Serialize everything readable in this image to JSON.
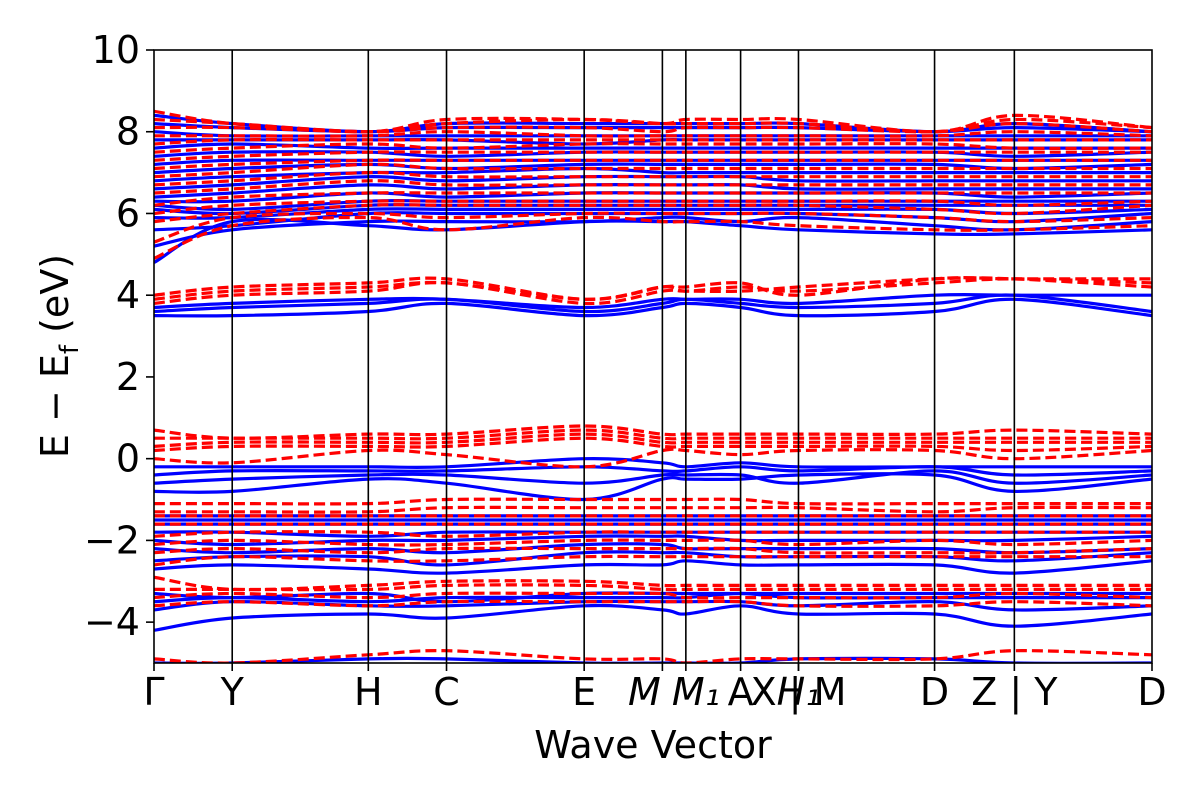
{
  "chart_data": {
    "type": "line",
    "title": "",
    "xlabel": "Wave Vector",
    "ylabel": "E − E_f (eV)",
    "ylabel_main": "E − E",
    "ylabel_sub": "f",
    "ylabel_unit": " (eV)",
    "ylim": [
      -5,
      10
    ],
    "yticks": [
      -4,
      -2,
      0,
      2,
      4,
      6,
      8,
      10
    ],
    "ytick_labels": [
      "−4",
      "−2",
      "0",
      "2",
      "4",
      "6",
      "8",
      "10"
    ],
    "kpoint_labels": [
      "Γ",
      "Y",
      "H",
      "C",
      "E",
      "M",
      "M₁",
      "A",
      "H₁",
      "X | M",
      "D",
      "Z | Y",
      "D"
    ],
    "kpoint_positions": [
      0,
      0.5,
      1.37,
      1.87,
      2.75,
      3.25,
      3.4,
      3.75,
      4.12,
      4.12,
      4.99,
      5.5,
      6.38
    ],
    "segment_breaks": [
      4.12,
      5.5
    ],
    "xlim": [
      0,
      6.38
    ],
    "colors": {
      "spin_up": "#0000ff",
      "spin_down": "#ff0000"
    },
    "series": [
      {
        "style": "solid",
        "color": "blue",
        "values": [
          [
            -5.0,
            -5.0,
            -4.9,
            -4.9,
            -5.0,
            -5.0,
            -5.0,
            -5.0,
            -4.9,
            -4.9,
            -5.0,
            -5.0
          ],
          [
            -4.2,
            -3.9,
            -3.8,
            -3.9,
            -3.6,
            -3.7,
            -3.8,
            -3.6,
            -3.8,
            -3.8,
            -4.1,
            -3.8
          ],
          [
            -3.7,
            -3.5,
            -3.6,
            -3.6,
            -3.5,
            -3.5,
            -3.5,
            -3.5,
            -3.6,
            -3.5,
            -3.7,
            -3.6
          ],
          [
            -3.5,
            -3.4,
            -3.5,
            -3.4,
            -3.4,
            -3.4,
            -3.4,
            -3.3,
            -3.4,
            -3.4,
            -3.4,
            -3.4
          ],
          [
            -3.3,
            -3.4,
            -3.3,
            -3.5,
            -3.3,
            -3.3,
            -3.3,
            -3.3,
            -3.3,
            -3.3,
            -3.3,
            -3.3
          ],
          [
            -2.7,
            -2.6,
            -2.7,
            -2.8,
            -2.6,
            -2.6,
            -2.5,
            -2.6,
            -2.6,
            -2.6,
            -2.8,
            -2.5
          ],
          [
            -2.5,
            -2.4,
            -2.4,
            -2.6,
            -2.3,
            -2.3,
            -2.3,
            -2.4,
            -2.4,
            -2.4,
            -2.5,
            -2.3
          ],
          [
            -2.2,
            -2.3,
            -2.2,
            -2.3,
            -2.1,
            -2.1,
            -2.2,
            -2.2,
            -2.2,
            -2.2,
            -2.3,
            -2.2
          ],
          [
            -2.0,
            -2.1,
            -2.0,
            -2.0,
            -1.9,
            -1.9,
            -1.9,
            -2.0,
            -2.0,
            -2.0,
            -2.0,
            -1.9
          ],
          [
            -1.8,
            -1.8,
            -1.9,
            -1.8,
            -1.8,
            -1.8,
            -1.8,
            -1.8,
            -1.8,
            -1.8,
            -1.8,
            -1.8
          ],
          [
            -1.6,
            -1.6,
            -1.6,
            -1.6,
            -1.6,
            -1.6,
            -1.6,
            -1.6,
            -1.6,
            -1.6,
            -1.6,
            -1.6
          ],
          [
            -1.5,
            -1.5,
            -1.5,
            -1.5,
            -1.5,
            -1.5,
            -1.5,
            -1.5,
            -1.5,
            -1.5,
            -1.5,
            -1.5
          ],
          [
            -1.4,
            -1.4,
            -1.4,
            -1.4,
            -1.4,
            -1.4,
            -1.4,
            -1.4,
            -1.4,
            -1.4,
            -1.4,
            -1.4
          ],
          [
            -0.8,
            -0.8,
            -0.5,
            -0.6,
            -1.0,
            -0.5,
            -0.5,
            -0.5,
            -0.4,
            -0.4,
            -0.8,
            -0.5
          ],
          [
            -0.6,
            -0.5,
            -0.4,
            -0.4,
            -0.6,
            -0.4,
            -0.4,
            -0.4,
            -0.6,
            -0.3,
            -0.6,
            -0.4
          ],
          [
            -0.4,
            -0.3,
            -0.3,
            -0.3,
            -0.2,
            -0.3,
            -0.3,
            -0.2,
            -0.3,
            -0.2,
            -0.4,
            -0.3
          ],
          [
            -0.2,
            -0.2,
            -0.2,
            -0.2,
            0.0,
            -0.1,
            -0.2,
            -0.1,
            -0.2,
            -0.2,
            -0.2,
            -0.2
          ],
          [
            3.5,
            3.5,
            3.6,
            3.8,
            3.5,
            3.7,
            3.8,
            3.7,
            3.5,
            3.6,
            3.9,
            3.5
          ],
          [
            3.6,
            3.7,
            3.8,
            3.9,
            3.6,
            3.8,
            3.9,
            3.8,
            3.7,
            3.8,
            4.0,
            3.6
          ],
          [
            3.7,
            3.8,
            3.9,
            3.9,
            3.7,
            3.9,
            3.9,
            3.9,
            3.8,
            4.0,
            4.0,
            4.0
          ],
          [
            4.8,
            5.8,
            5.7,
            5.6,
            5.8,
            5.8,
            5.8,
            5.7,
            5.6,
            5.5,
            5.5,
            5.6
          ],
          [
            5.2,
            5.6,
            5.8,
            5.8,
            5.8,
            5.9,
            5.9,
            5.8,
            5.9,
            5.7,
            5.6,
            5.8
          ],
          [
            5.6,
            5.7,
            6.0,
            6.0,
            6.0,
            6.0,
            6.0,
            6.0,
            6.0,
            5.9,
            5.8,
            6.0
          ],
          [
            5.9,
            5.9,
            6.1,
            6.1,
            6.1,
            6.1,
            6.1,
            6.1,
            6.1,
            6.1,
            6.0,
            6.1
          ],
          [
            6.1,
            6.0,
            6.2,
            6.2,
            6.2,
            6.2,
            6.2,
            6.2,
            6.2,
            6.2,
            6.2,
            6.2
          ],
          [
            6.2,
            6.1,
            6.3,
            6.3,
            6.3,
            6.3,
            6.3,
            6.3,
            6.3,
            6.3,
            6.3,
            6.3
          ],
          [
            6.3,
            6.3,
            6.5,
            6.4,
            6.5,
            6.5,
            6.5,
            6.5,
            6.5,
            6.5,
            6.4,
            6.5
          ],
          [
            6.4,
            6.5,
            6.7,
            6.6,
            6.7,
            6.7,
            6.7,
            6.7,
            6.6,
            6.6,
            6.6,
            6.6
          ],
          [
            6.6,
            6.7,
            6.9,
            6.8,
            6.9,
            6.9,
            6.9,
            6.9,
            6.8,
            6.8,
            6.8,
            6.8
          ],
          [
            6.8,
            6.9,
            7.0,
            7.0,
            7.1,
            7.0,
            7.0,
            7.0,
            7.0,
            7.0,
            7.0,
            7.0
          ],
          [
            7.0,
            7.1,
            7.2,
            7.1,
            7.2,
            7.2,
            7.2,
            7.2,
            7.2,
            7.2,
            7.1,
            7.2
          ],
          [
            7.2,
            7.3,
            7.3,
            7.3,
            7.3,
            7.3,
            7.3,
            7.3,
            7.3,
            7.3,
            7.3,
            7.3
          ],
          [
            7.4,
            7.5,
            7.5,
            7.4,
            7.5,
            7.5,
            7.5,
            7.5,
            7.5,
            7.5,
            7.4,
            7.5
          ],
          [
            7.6,
            7.7,
            7.6,
            7.6,
            7.6,
            7.6,
            7.6,
            7.6,
            7.6,
            7.6,
            7.6,
            7.6
          ],
          [
            7.8,
            7.8,
            7.8,
            7.8,
            7.7,
            7.8,
            7.8,
            7.8,
            7.8,
            7.8,
            7.8,
            7.8
          ],
          [
            8.0,
            7.9,
            7.9,
            7.9,
            7.9,
            7.9,
            7.9,
            7.9,
            7.9,
            7.9,
            7.9,
            7.9
          ],
          [
            8.2,
            8.1,
            8.0,
            8.1,
            8.1,
            8.1,
            8.1,
            8.1,
            8.1,
            8.0,
            8.1,
            8.0
          ],
          [
            8.4,
            8.2,
            8.0,
            8.2,
            8.2,
            8.2,
            8.2,
            8.2,
            8.2,
            8.0,
            8.2,
            8.0
          ]
        ]
      },
      {
        "style": "dashed",
        "color": "red",
        "values": [
          [
            -4.9,
            -5.0,
            -4.8,
            -4.7,
            -4.9,
            -4.9,
            -5.0,
            -4.9,
            -4.9,
            -4.9,
            -4.7,
            -4.8
          ],
          [
            -3.6,
            -3.5,
            -3.6,
            -3.5,
            -3.5,
            -3.5,
            -3.5,
            -3.5,
            -3.6,
            -3.6,
            -3.5,
            -3.6
          ],
          [
            -3.4,
            -3.3,
            -3.4,
            -3.3,
            -3.3,
            -3.3,
            -3.4,
            -3.4,
            -3.4,
            -3.4,
            -3.3,
            -3.4
          ],
          [
            -3.2,
            -3.2,
            -3.2,
            -3.1,
            -3.1,
            -3.2,
            -3.2,
            -3.2,
            -3.2,
            -3.2,
            -3.2,
            -3.2
          ],
          [
            -2.9,
            -3.2,
            -3.1,
            -3.0,
            -3.0,
            -3.1,
            -3.1,
            -3.1,
            -3.1,
            -3.1,
            -3.1,
            -3.1
          ],
          [
            -2.6,
            -2.4,
            -2.5,
            -2.5,
            -2.4,
            -2.4,
            -2.4,
            -2.4,
            -2.4,
            -2.4,
            -2.4,
            -2.4
          ],
          [
            -2.3,
            -2.2,
            -2.3,
            -2.2,
            -2.2,
            -2.2,
            -2.2,
            -2.2,
            -2.3,
            -2.3,
            -2.3,
            -2.2
          ],
          [
            -2.1,
            -2.0,
            -2.1,
            -2.1,
            -2.0,
            -2.0,
            -2.0,
            -2.0,
            -2.1,
            -2.0,
            -2.1,
            -2.0
          ],
          [
            -1.9,
            -1.8,
            -1.8,
            -1.9,
            -1.8,
            -1.8,
            -1.8,
            -1.8,
            -1.8,
            -1.8,
            -1.8,
            -1.8
          ],
          [
            -1.6,
            -1.6,
            -1.6,
            -1.6,
            -1.6,
            -1.6,
            -1.6,
            -1.6,
            -1.6,
            -1.6,
            -1.6,
            -1.6
          ],
          [
            -1.4,
            -1.4,
            -1.4,
            -1.4,
            -1.4,
            -1.4,
            -1.4,
            -1.4,
            -1.4,
            -1.4,
            -1.4,
            -1.4
          ],
          [
            -1.3,
            -1.3,
            -1.3,
            -1.2,
            -1.2,
            -1.2,
            -1.2,
            -1.2,
            -1.2,
            -1.3,
            -1.2,
            -1.2
          ],
          [
            -1.1,
            -1.1,
            -1.1,
            -1.0,
            -1.0,
            -1.0,
            -1.0,
            -1.0,
            -1.1,
            -1.1,
            -1.1,
            -1.1
          ],
          [
            0.0,
            -0.1,
            0.2,
            0.1,
            -0.2,
            0.2,
            0.2,
            0.1,
            0.2,
            0.2,
            0.0,
            0.2
          ],
          [
            0.2,
            0.3,
            0.3,
            0.3,
            0.5,
            0.3,
            0.3,
            0.3,
            0.3,
            0.3,
            0.2,
            0.3
          ],
          [
            0.3,
            0.4,
            0.4,
            0.4,
            0.6,
            0.4,
            0.4,
            0.4,
            0.4,
            0.4,
            0.4,
            0.4
          ],
          [
            0.5,
            0.5,
            0.5,
            0.5,
            0.7,
            0.5,
            0.5,
            0.5,
            0.5,
            0.5,
            0.5,
            0.5
          ],
          [
            0.7,
            0.5,
            0.6,
            0.6,
            0.8,
            0.6,
            0.6,
            0.6,
            0.6,
            0.6,
            0.7,
            0.6
          ],
          [
            3.8,
            4.0,
            4.1,
            4.3,
            3.8,
            4.1,
            4.1,
            4.1,
            4.2,
            4.4,
            4.4,
            4.2
          ],
          [
            3.9,
            4.1,
            4.2,
            4.3,
            3.9,
            4.2,
            4.1,
            4.2,
            4.1,
            4.3,
            4.4,
            4.3
          ],
          [
            4.0,
            4.2,
            4.3,
            4.4,
            3.9,
            4.2,
            4.2,
            4.3,
            4.0,
            4.4,
            4.4,
            4.4
          ],
          [
            4.9,
            5.7,
            5.9,
            5.6,
            5.9,
            5.8,
            5.8,
            5.8,
            5.7,
            5.6,
            5.6,
            5.7
          ],
          [
            5.3,
            5.9,
            6.0,
            5.9,
            6.0,
            6.0,
            6.0,
            6.0,
            6.0,
            5.9,
            5.8,
            5.9
          ],
          [
            5.8,
            6.0,
            6.2,
            6.2,
            6.2,
            6.2,
            6.2,
            6.2,
            6.2,
            6.1,
            6.0,
            6.2
          ],
          [
            6.0,
            6.2,
            6.3,
            6.3,
            6.3,
            6.3,
            6.3,
            6.3,
            6.3,
            6.3,
            6.2,
            6.3
          ],
          [
            6.2,
            6.4,
            6.5,
            6.5,
            6.5,
            6.5,
            6.5,
            6.5,
            6.5,
            6.5,
            6.5,
            6.5
          ],
          [
            6.5,
            6.6,
            6.8,
            6.7,
            6.7,
            6.7,
            6.7,
            6.7,
            6.7,
            6.7,
            6.7,
            6.7
          ],
          [
            6.7,
            6.8,
            7.0,
            6.9,
            6.9,
            6.9,
            6.9,
            6.9,
            6.9,
            6.9,
            6.9,
            6.9
          ],
          [
            6.9,
            7.0,
            7.2,
            7.1,
            7.1,
            7.1,
            7.1,
            7.1,
            7.1,
            7.1,
            7.1,
            7.1
          ],
          [
            7.1,
            7.2,
            7.3,
            7.3,
            7.3,
            7.3,
            7.3,
            7.3,
            7.3,
            7.3,
            7.3,
            7.3
          ],
          [
            7.3,
            7.4,
            7.5,
            7.5,
            7.5,
            7.5,
            7.5,
            7.5,
            7.5,
            7.5,
            7.5,
            7.5
          ],
          [
            7.5,
            7.6,
            7.7,
            7.6,
            7.7,
            7.7,
            7.7,
            7.7,
            7.7,
            7.7,
            7.6,
            7.6
          ],
          [
            7.7,
            7.8,
            7.8,
            7.8,
            7.8,
            7.8,
            7.8,
            7.8,
            7.8,
            7.8,
            7.8,
            7.8
          ],
          [
            7.9,
            7.9,
            7.9,
            8.0,
            7.9,
            7.9,
            7.9,
            7.9,
            7.9,
            7.9,
            8.0,
            7.9
          ],
          [
            8.1,
            8.1,
            8.0,
            8.1,
            8.1,
            8.0,
            8.1,
            8.1,
            8.1,
            8.0,
            8.2,
            8.0
          ],
          [
            8.3,
            8.2,
            8.0,
            8.2,
            8.3,
            8.2,
            8.2,
            8.2,
            8.2,
            8.0,
            8.3,
            8.1
          ],
          [
            8.5,
            8.2,
            8.0,
            8.3,
            8.3,
            8.2,
            8.3,
            8.3,
            8.3,
            8.0,
            8.4,
            8.1
          ]
        ]
      }
    ]
  }
}
